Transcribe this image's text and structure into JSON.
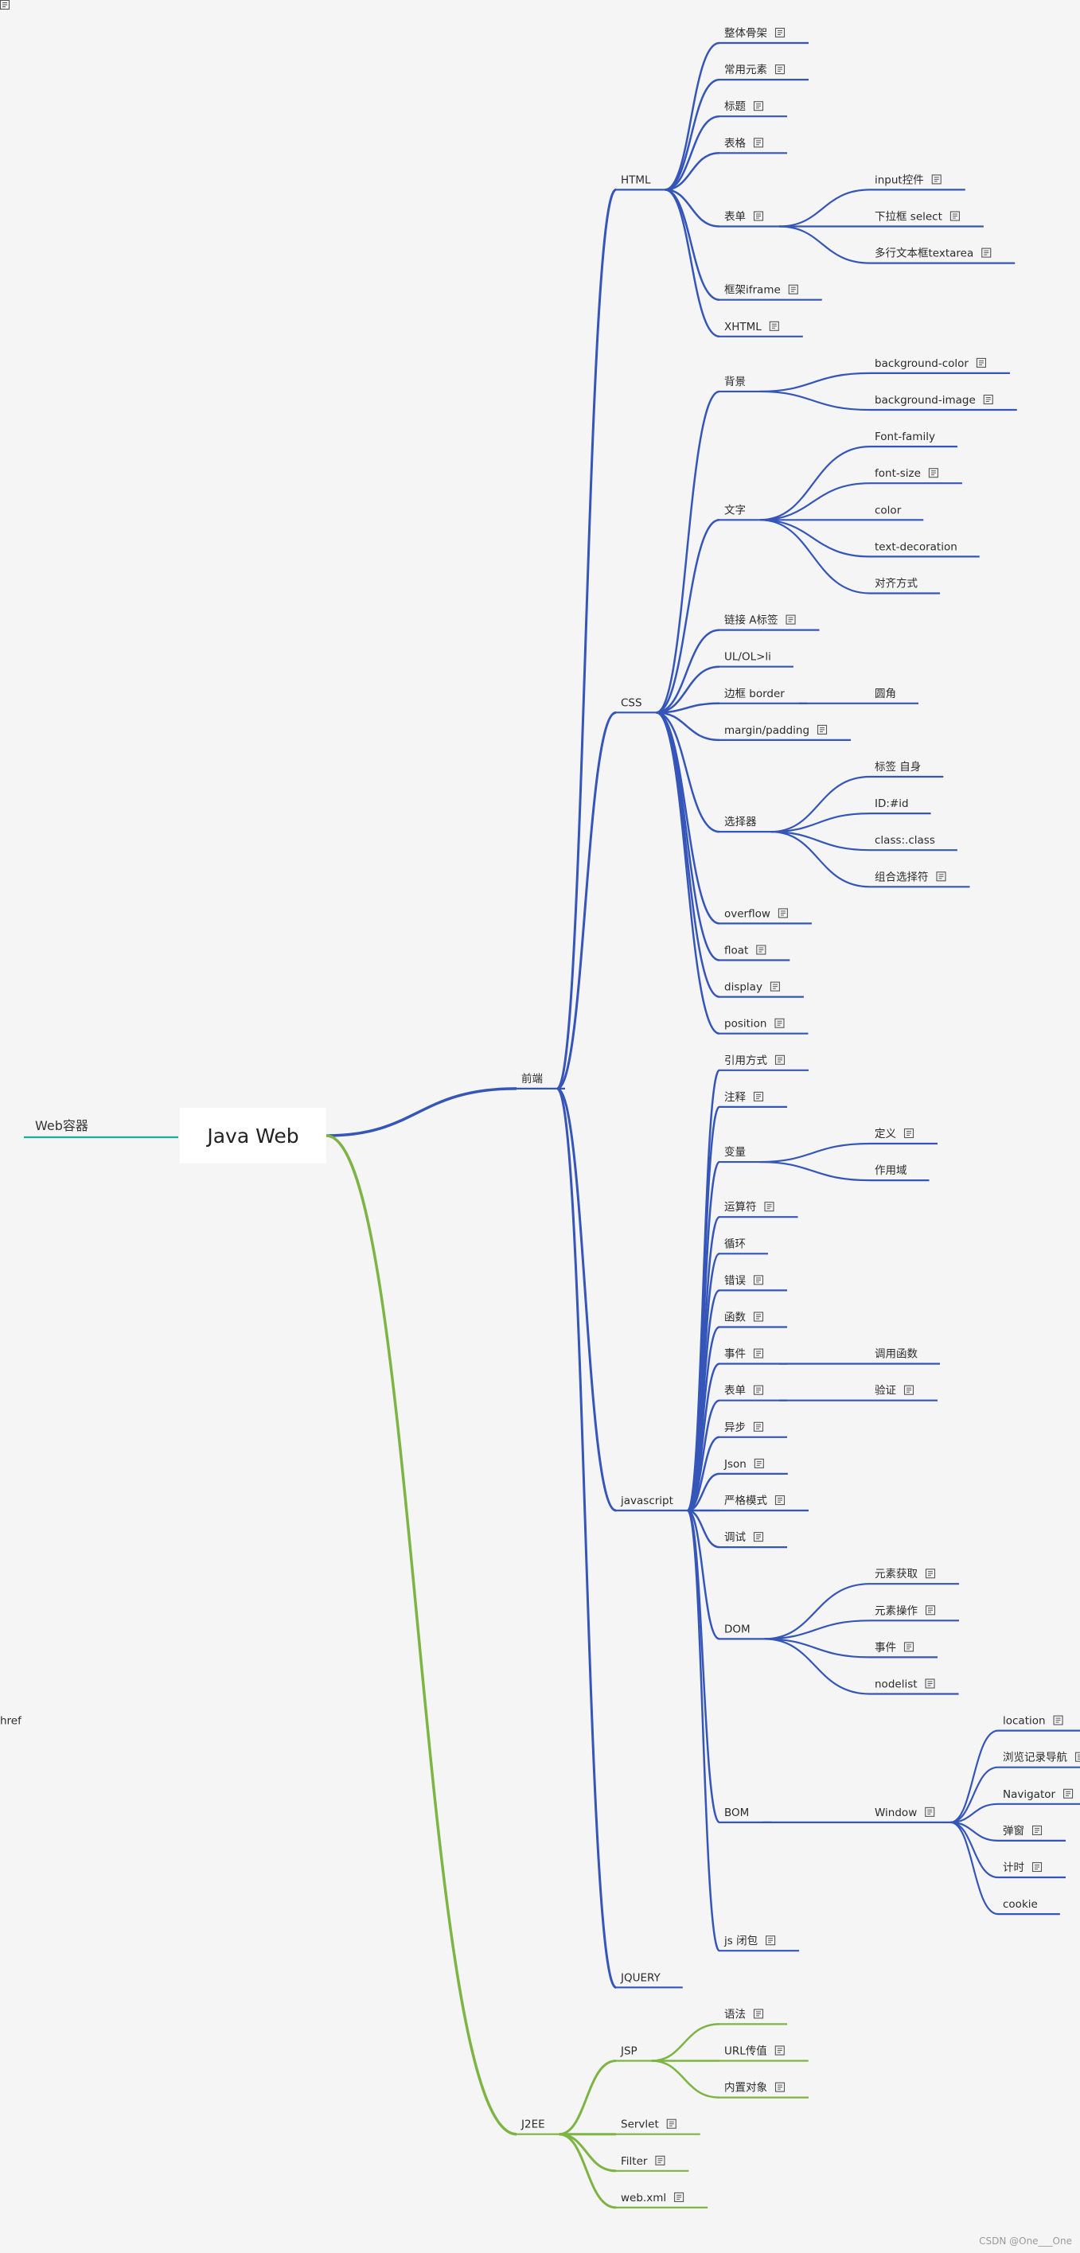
{
  "colors": {
    "blue": "#3556b8",
    "green": "#7db443",
    "teal": "#1aab9b"
  },
  "sidebar": {
    "label": "Web容器"
  },
  "root": {
    "label": "Java Web"
  },
  "watermark": "CSDN @One___One",
  "tree": [
    {
      "label": "前端",
      "color": "blue",
      "children": [
        {
          "label": "HTML",
          "children": [
            {
              "label": "整体骨架",
              "note": true
            },
            {
              "label": "常用元素",
              "note": true
            },
            {
              "label": "标题",
              "note": true
            },
            {
              "label": "表格",
              "note": true
            },
            {
              "label": "表单",
              "note": true,
              "children": [
                {
                  "label": "input控件",
                  "note": true
                },
                {
                  "label": "下拉框 select",
                  "note": true
                },
                {
                  "label": "多行文本框textarea",
                  "note": true
                }
              ]
            },
            {
              "label": "框架iframe",
              "note": true
            },
            {
              "label": "XHTML",
              "note": true
            }
          ]
        },
        {
          "label": "CSS",
          "children": [
            {
              "label": "背景",
              "children": [
                {
                  "label": "background-color",
                  "note": true
                },
                {
                  "label": "background-image",
                  "note": true
                }
              ]
            },
            {
              "label": "文字",
              "children": [
                {
                  "label": "Font-family"
                },
                {
                  "label": "font-size",
                  "note": true
                },
                {
                  "label": "color"
                },
                {
                  "label": "text-decoration"
                },
                {
                  "label": "对齐方式"
                }
              ]
            },
            {
              "label": "链接 A标签",
              "note": true
            },
            {
              "label": "UL/OL>li"
            },
            {
              "label": "边框 border",
              "children": [
                {
                  "label": "圆角"
                }
              ]
            },
            {
              "label": "margin/padding",
              "note": true
            },
            {
              "label": "选择器",
              "children": [
                {
                  "label": "标签 自身"
                },
                {
                  "label": "ID:#id"
                },
                {
                  "label": "class:.class"
                },
                {
                  "label": "组合选择符",
                  "note": true
                }
              ]
            },
            {
              "label": "overflow",
              "note": true
            },
            {
              "label": "float",
              "note": true
            },
            {
              "label": "display",
              "note": true
            },
            {
              "label": "position",
              "note": true
            }
          ]
        },
        {
          "label": "javascript",
          "children": [
            {
              "label": "引用方式",
              "note": true
            },
            {
              "label": "注释",
              "note": true
            },
            {
              "label": "变量",
              "children": [
                {
                  "label": "定义",
                  "note": true
                },
                {
                  "label": "作用域"
                }
              ]
            },
            {
              "label": "运算符",
              "note": true
            },
            {
              "label": "循环"
            },
            {
              "label": "错误",
              "note": true
            },
            {
              "label": "函数",
              "note": true
            },
            {
              "label": "事件",
              "note": true,
              "children": [
                {
                  "label": "调用函数"
                }
              ]
            },
            {
              "label": "表单",
              "note": true,
              "children": [
                {
                  "label": "验证",
                  "note": true
                }
              ]
            },
            {
              "label": "异步",
              "note": true
            },
            {
              "label": "Json",
              "note": true
            },
            {
              "label": "严格模式",
              "note": true
            },
            {
              "label": "调试",
              "note": true
            },
            {
              "label": "DOM",
              "children": [
                {
                  "label": "元素获取",
                  "note": true
                },
                {
                  "label": "元素操作",
                  "note": true
                },
                {
                  "label": "事件",
                  "note": true
                },
                {
                  "label": "nodelist",
                  "note": true
                }
              ]
            },
            {
              "label": "BOM",
              "children": [
                {
                  "label": "Window",
                  "note": true,
                  "children": [
                    {
                      "label": "location",
                      "note": true,
                      "children": [
                        {
                          "label": "href",
                          "note": true
                        }
                      ]
                    },
                    {
                      "label": "浏览记录导航",
                      "note": true
                    },
                    {
                      "label": "Navigator",
                      "note": true
                    },
                    {
                      "label": "弹窗",
                      "note": true
                    },
                    {
                      "label": "计时",
                      "note": true
                    },
                    {
                      "label": "cookie"
                    }
                  ]
                }
              ]
            },
            {
              "label": "js 闭包",
              "note": true
            }
          ]
        },
        {
          "label": "JQUERY"
        }
      ]
    },
    {
      "label": "J2EE",
      "color": "green",
      "children": [
        {
          "label": "JSP",
          "children": [
            {
              "label": "语法",
              "note": true
            },
            {
              "label": "URL传值",
              "note": true
            },
            {
              "label": "内置对象",
              "note": true
            }
          ]
        },
        {
          "label": "Servlet",
          "note": true
        },
        {
          "label": "Filter",
          "note": true
        },
        {
          "label": "web.xml",
          "note": true
        }
      ]
    }
  ]
}
